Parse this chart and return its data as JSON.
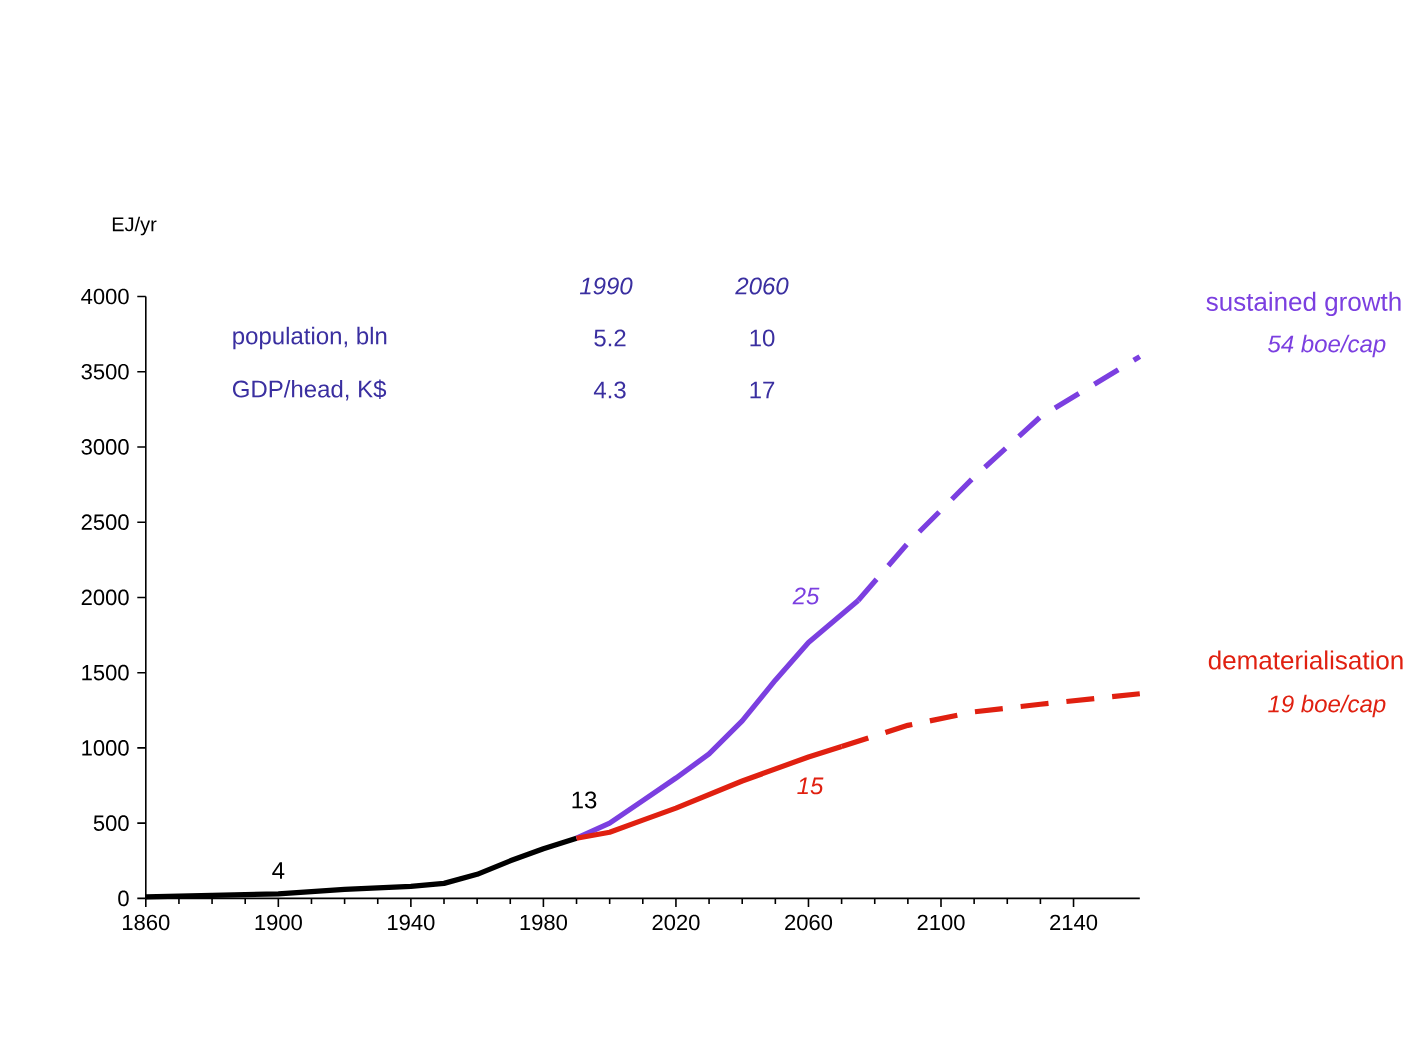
{
  "chart_data": {
    "type": "line",
    "ylabel": "EJ/yr",
    "xlim": [
      1860,
      2160
    ],
    "xticks": [
      1860,
      1900,
      1940,
      1980,
      2020,
      2060,
      2100,
      2140
    ],
    "ylim": [
      0,
      4000
    ],
    "yticks": [
      0,
      500,
      1000,
      1500,
      2000,
      2500,
      3000,
      3500,
      4000
    ],
    "grid": false,
    "legend": false,
    "marker": "none",
    "series": [
      {
        "color": "#000000",
        "line_style": "solid",
        "x": [
          1860,
          1880,
          1900,
          1920,
          1940,
          1950,
          1960,
          1970,
          1980,
          1990
        ],
        "values": [
          10,
          20,
          30,
          60,
          80,
          100,
          160,
          250,
          330,
          400
        ]
      },
      {
        "color": "#7b3fe0",
        "line_style": "solid",
        "x": [
          1990,
          2000,
          2010,
          2020,
          2030,
          2040,
          2050,
          2060,
          2075
        ],
        "values": [
          400,
          500,
          650,
          800,
          960,
          1180,
          1450,
          1700,
          1980
        ]
      },
      {
        "name": "sustained growth",
        "color": "#7b3fe0",
        "line_style": "dashed",
        "x": [
          2075,
          2090,
          2110,
          2130,
          2160
        ],
        "values": [
          1980,
          2360,
          2800,
          3200,
          3600
        ]
      },
      {
        "color": "#e02010",
        "line_style": "solid",
        "x": [
          1990,
          2000,
          2010,
          2020,
          2030,
          2040,
          2050,
          2060,
          2070
        ],
        "values": [
          400,
          440,
          520,
          600,
          690,
          780,
          860,
          940,
          1010
        ]
      },
      {
        "name": "dematerialisation",
        "color": "#e02010",
        "line_style": "dashed",
        "x": [
          2070,
          2090,
          2110,
          2130,
          2160
        ],
        "values": [
          1010,
          1150,
          1240,
          1290,
          1360
        ]
      }
    ],
    "annotations": [
      "1990",
      "2060",
      "population, bln",
      "5.2",
      "10",
      "GDP/head, K$",
      "4.3",
      "17",
      "54 boe/cap",
      "19 boe/cap",
      {
        "text": "4",
        "x": 1900,
        "y": 80
      },
      "13",
      "25",
      "15"
    ]
  }
}
